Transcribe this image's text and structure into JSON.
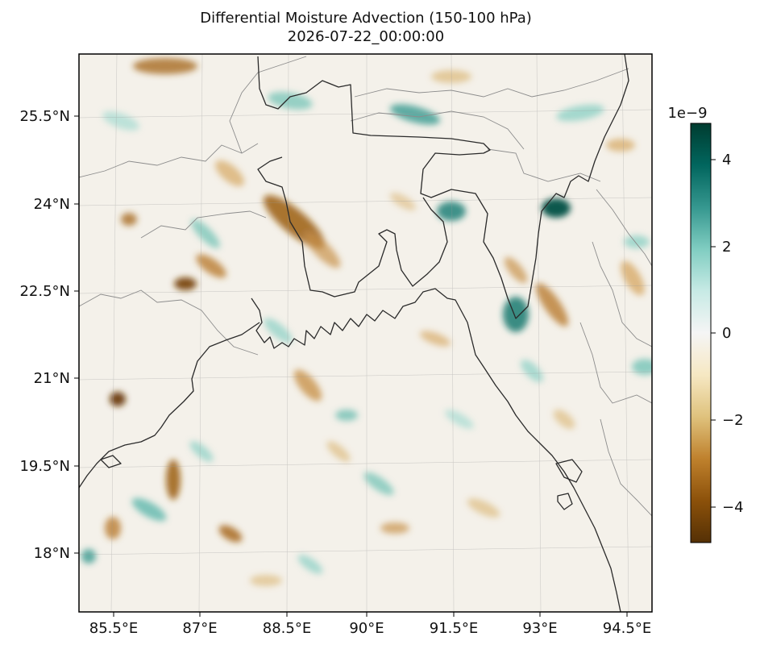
{
  "title": "Differential Moisture Advection (150-100 hPa)",
  "subtitle": "2026-07-22_00:00:00",
  "map": {
    "extent_lon": [
      84.4,
      94.9
    ],
    "extent_lat": [
      16.9,
      26.9
    ],
    "lon_ticks": [
      "85.5°E",
      "87°E",
      "88.5°E",
      "90°E",
      "91.5°E",
      "93°E",
      "94.5°E"
    ],
    "lat_ticks": [
      "25.5°N",
      "24°N",
      "22.5°N",
      "21°N",
      "19.5°N",
      "18°N"
    ],
    "gridlines": true,
    "coastline_color": "#2a2a2a",
    "border_color": "#8c8c8c"
  },
  "colorbar": {
    "cmap": "BrBG",
    "scale_label": "1e−9",
    "ticks": [
      "4",
      "2",
      "0",
      "−2",
      "−4"
    ],
    "range": [
      -4.8,
      4.8
    ],
    "colors": [
      "#543005",
      "#8c510a",
      "#bf812d",
      "#dfc27d",
      "#f6e8c3",
      "#f5f5f5",
      "#c7eae5",
      "#80cdc1",
      "#35978f",
      "#01665e",
      "#003c30"
    ]
  }
}
